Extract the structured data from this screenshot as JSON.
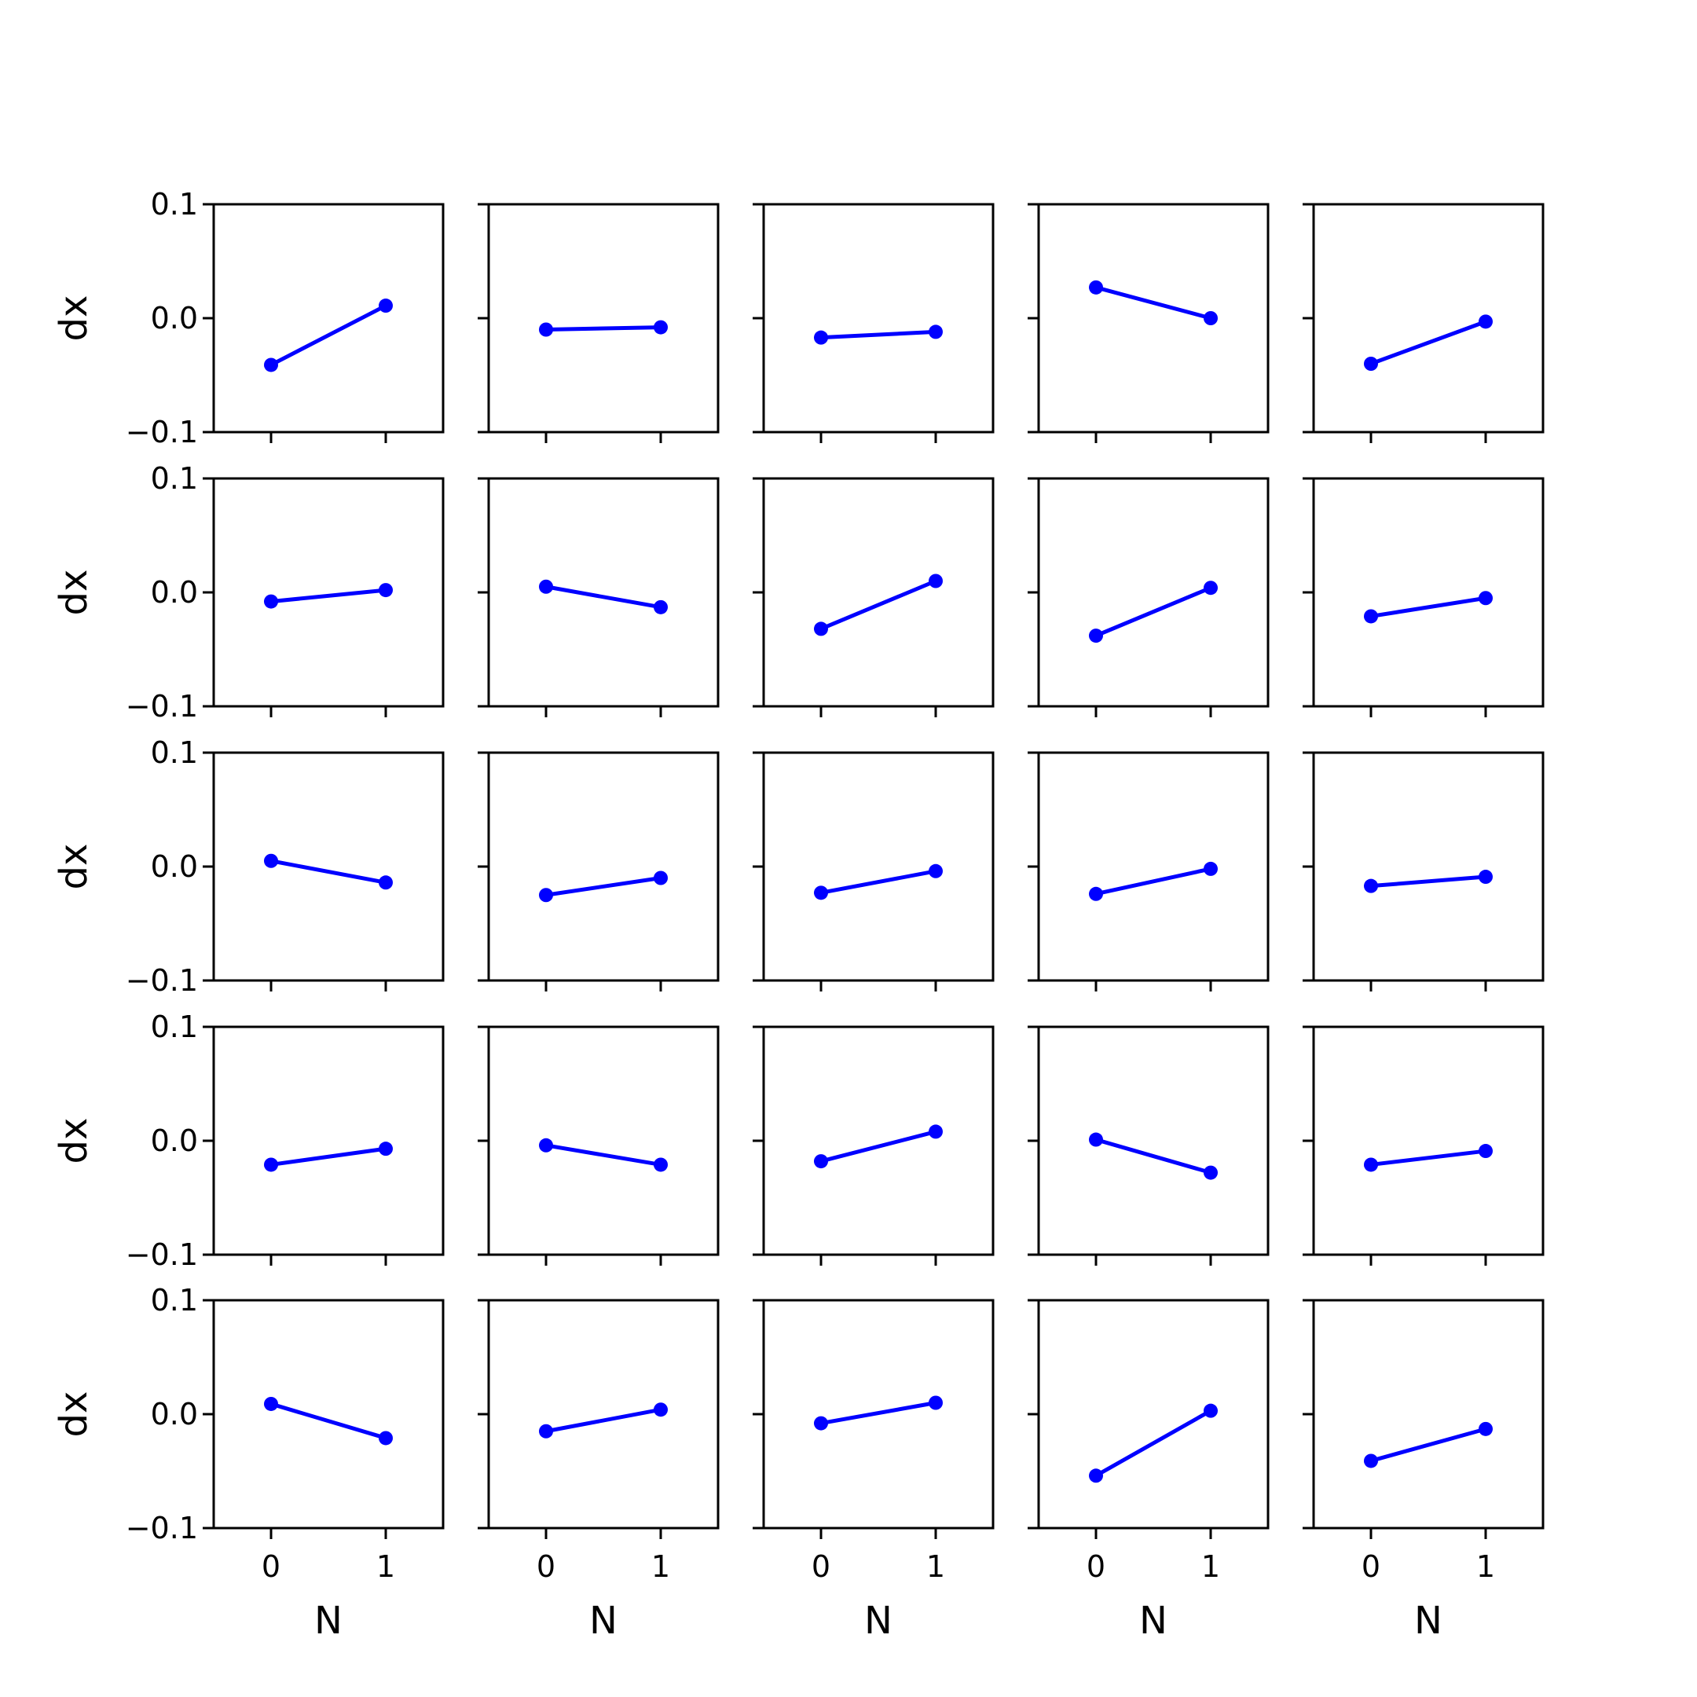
{
  "chart_data": {
    "type": "line",
    "layout": {
      "rows": 5,
      "cols": 5
    },
    "xlabel": "N",
    "ylabel": "dx",
    "xlim": [
      -0.5,
      1.5
    ],
    "ylim": [
      -0.1,
      0.1
    ],
    "xticks": [
      0,
      1
    ],
    "xtick_labels": [
      "0",
      "1"
    ],
    "yticks": [
      -0.1,
      0.0,
      0.1
    ],
    "ytick_labels": [
      "−0.1",
      "0.0",
      "0.1"
    ],
    "line_color": "#0000ff",
    "marker": "circle",
    "x": [
      0,
      1
    ],
    "panels": [
      {
        "y": [
          -0.041,
          0.011
        ]
      },
      {
        "y": [
          -0.01,
          -0.008
        ]
      },
      {
        "y": [
          -0.017,
          -0.012
        ]
      },
      {
        "y": [
          0.027,
          0.0
        ]
      },
      {
        "y": [
          -0.04,
          -0.003
        ]
      },
      {
        "y": [
          -0.008,
          0.002
        ]
      },
      {
        "y": [
          0.005,
          -0.013
        ]
      },
      {
        "y": [
          -0.032,
          0.01
        ]
      },
      {
        "y": [
          -0.038,
          0.004
        ]
      },
      {
        "y": [
          -0.021,
          -0.005
        ]
      },
      {
        "y": [
          0.005,
          -0.014
        ]
      },
      {
        "y": [
          -0.025,
          -0.01
        ]
      },
      {
        "y": [
          -0.023,
          -0.004
        ]
      },
      {
        "y": [
          -0.024,
          -0.002
        ]
      },
      {
        "y": [
          -0.017,
          -0.009
        ]
      },
      {
        "y": [
          -0.021,
          -0.007
        ]
      },
      {
        "y": [
          -0.004,
          -0.021
        ]
      },
      {
        "y": [
          -0.018,
          0.008
        ]
      },
      {
        "y": [
          0.001,
          -0.028
        ]
      },
      {
        "y": [
          -0.021,
          -0.009
        ]
      },
      {
        "y": [
          0.009,
          -0.021
        ]
      },
      {
        "y": [
          -0.015,
          0.004
        ]
      },
      {
        "y": [
          -0.008,
          0.01
        ]
      },
      {
        "y": [
          -0.054,
          0.003
        ]
      },
      {
        "y": [
          -0.041,
          -0.013
        ]
      }
    ]
  }
}
